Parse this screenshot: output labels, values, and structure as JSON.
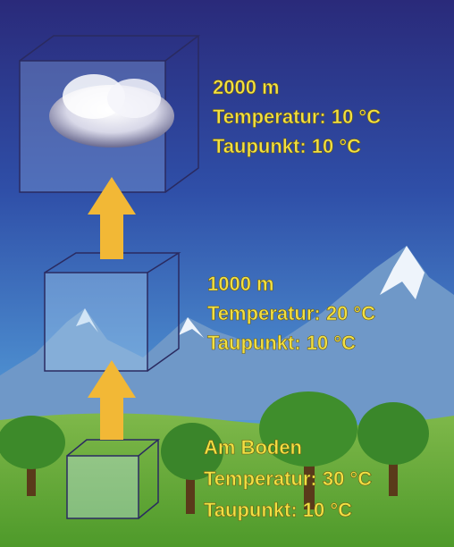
{
  "levels": [
    {
      "altitude": "2000 m",
      "temperature": "Temperatur: 10 °C",
      "dew_point": "Taupunkt: 10 °C"
    },
    {
      "altitude": "1000 m",
      "temperature": "Temperatur: 20 °C",
      "dew_point": "Taupunkt: 10 °C"
    },
    {
      "altitude": "Am Boden",
      "temperature": "Temperatur: 30 °C",
      "dew_point": "Taupunkt: 10 °C"
    }
  ]
}
